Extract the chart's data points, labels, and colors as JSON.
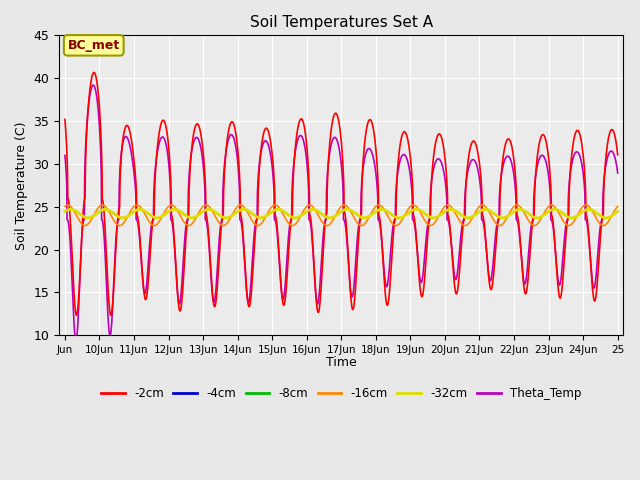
{
  "title": "Soil Temperatures Set A",
  "xlabel": "Time",
  "ylabel": "Soil Temperature (C)",
  "ylim": [
    10,
    45
  ],
  "background_color": "#e8e8e8",
  "plot_bg_color": "#ebebeb",
  "annotation_text": "BC_met",
  "annotation_facecolor": "#ffff99",
  "annotation_edgecolor": "#999900",
  "annotation_textcolor": "#8B0000",
  "colors": {
    "-2cm": "#ff0000",
    "-4cm": "#0000cc",
    "-8cm": "#00bb00",
    "-16cm": "#ff8800",
    "-32cm": "#dddd00",
    "Theta_Temp": "#bb00bb"
  },
  "xtick_labels": [
    "Jun",
    "10Jun",
    "11Jun",
    "12Jun",
    "13Jun",
    "14Jun",
    "15Jun",
    "16Jun",
    "17Jun",
    "18Jun",
    "19Jun",
    "20Jun",
    "21Jun",
    "22Jun",
    "23Jun",
    "24Jun",
    "25"
  ],
  "xtick_positions": [
    0,
    24,
    48,
    72,
    96,
    120,
    144,
    168,
    192,
    216,
    240,
    264,
    288,
    312,
    336,
    360,
    384
  ],
  "ytick_positions": [
    10,
    15,
    20,
    25,
    30,
    35,
    40,
    45
  ]
}
